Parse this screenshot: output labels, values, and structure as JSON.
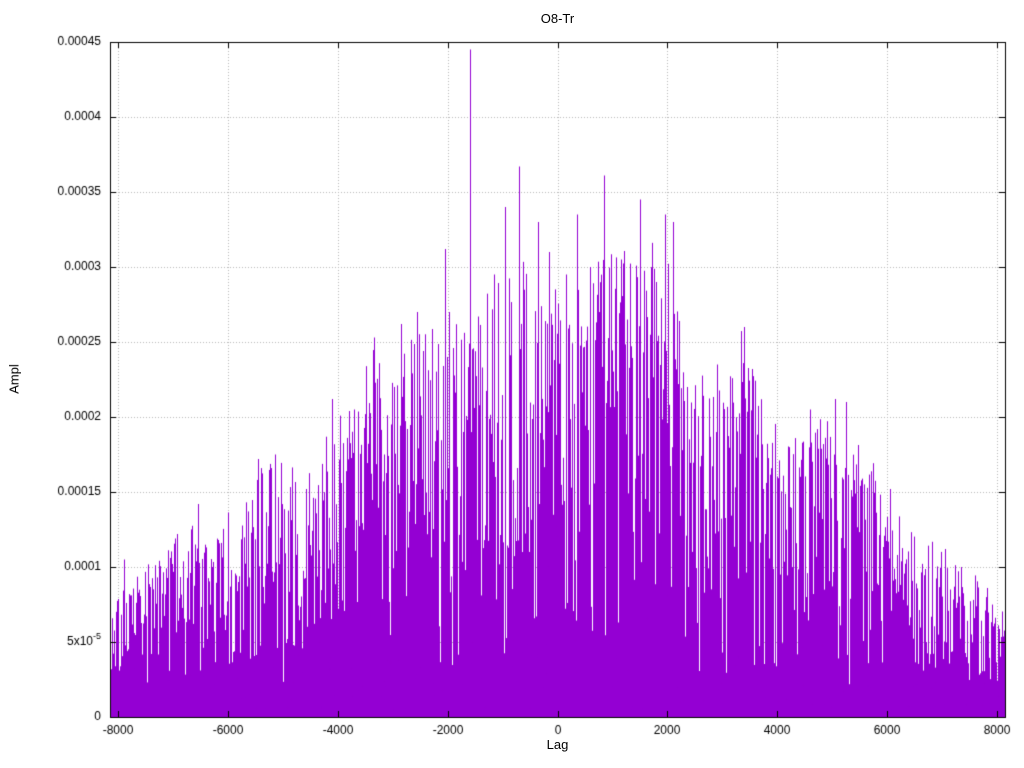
{
  "chart_data": {
    "type": "line",
    "style": "impulses",
    "title": "O8-Tr",
    "xlabel": "Lag",
    "ylabel": "Ampl",
    "xlim": [
      -8150,
      8150
    ],
    "ylim": [
      0,
      0.00045
    ],
    "grid": true,
    "legend": false,
    "line_color": "#9400d3",
    "grid_color": "#b8b8b8",
    "text_color": "#000000",
    "background": "#ffffff",
    "xticks": [
      {
        "v": -8000,
        "label": "-8000"
      },
      {
        "v": -6000,
        "label": "-6000"
      },
      {
        "v": -4000,
        "label": "-4000"
      },
      {
        "v": -2000,
        "label": "-2000"
      },
      {
        "v": 0,
        "label": "0"
      },
      {
        "v": 2000,
        "label": "2000"
      },
      {
        "v": 4000,
        "label": "4000"
      },
      {
        "v": 6000,
        "label": "6000"
      },
      {
        "v": 8000,
        "label": "8000"
      }
    ],
    "yticks": [
      {
        "v": 0,
        "label": "0"
      },
      {
        "v": 5e-05,
        "label": "5x10",
        "sup": "-5"
      },
      {
        "v": 0.0001,
        "label": "0.0001"
      },
      {
        "v": 0.00015,
        "label": "0.00015"
      },
      {
        "v": 0.0002,
        "label": "0.0002"
      },
      {
        "v": 0.00025,
        "label": "0.00025"
      },
      {
        "v": 0.0003,
        "label": "0.0003"
      },
      {
        "v": 0.00035,
        "label": "0.00035"
      },
      {
        "v": 0.0004,
        "label": "0.0004"
      },
      {
        "v": 0.00045,
        "label": "0.00045"
      }
    ],
    "envelope": [
      [
        -8150,
        6e-05
      ],
      [
        -8000,
        8e-05
      ],
      [
        -7800,
        9e-05
      ],
      [
        -7400,
        0.0001
      ],
      [
        -7000,
        0.00012
      ],
      [
        -6600,
        0.00013
      ],
      [
        -6200,
        0.00012
      ],
      [
        -5800,
        0.00014
      ],
      [
        -5400,
        0.00017
      ],
      [
        -5000,
        0.00017
      ],
      [
        -4600,
        0.00015
      ],
      [
        -4200,
        0.00019
      ],
      [
        -3800,
        0.00021
      ],
      [
        -3400,
        0.00024
      ],
      [
        -3000,
        0.00024
      ],
      [
        -2600,
        0.00026
      ],
      [
        -2200,
        0.00027
      ],
      [
        -1800,
        0.00028
      ],
      [
        -1400,
        0.00027
      ],
      [
        -1000,
        0.0003
      ],
      [
        -600,
        0.00031
      ],
      [
        -200,
        0.00029
      ],
      [
        200,
        0.00028
      ],
      [
        600,
        0.0003
      ],
      [
        1000,
        0.00031
      ],
      [
        1400,
        0.0003
      ],
      [
        1800,
        0.00031
      ],
      [
        2200,
        0.00028
      ],
      [
        2600,
        0.00022
      ],
      [
        3000,
        0.00022
      ],
      [
        3400,
        0.00025
      ],
      [
        3800,
        0.00021
      ],
      [
        4200,
        0.00019
      ],
      [
        4600,
        0.0002
      ],
      [
        5000,
        0.00021
      ],
      [
        5400,
        0.00018
      ],
      [
        5800,
        0.00016
      ],
      [
        6200,
        0.00013
      ],
      [
        6600,
        0.00012
      ],
      [
        7000,
        0.00011
      ],
      [
        7400,
        0.0001
      ],
      [
        7800,
        9e-05
      ],
      [
        8150,
        7e-05
      ]
    ],
    "peak": {
      "x": -1600,
      "y": 0.000445
    },
    "spikes": [
      [
        -7900,
        0.000105
      ],
      [
        -6550,
        0.000142
      ],
      [
        -5450,
        0.000172
      ],
      [
        -5150,
        0.000175
      ],
      [
        -4100,
        0.000212
      ],
      [
        -3700,
        0.000205
      ],
      [
        -3350,
        0.000253
      ],
      [
        -2850,
        0.000262
      ],
      [
        -2550,
        0.00027
      ],
      [
        -2050,
        0.000312
      ],
      [
        -1600,
        0.000445
      ],
      [
        -1150,
        0.000295
      ],
      [
        -950,
        0.00034
      ],
      [
        -700,
        0.000367
      ],
      [
        -350,
        0.00033
      ],
      [
        -150,
        0.00031
      ],
      [
        150,
        0.000295
      ],
      [
        350,
        0.000335
      ],
      [
        600,
        0.0003
      ],
      [
        850,
        0.000361
      ],
      [
        1150,
        0.000305
      ],
      [
        1500,
        0.000345
      ],
      [
        1800,
        0.00029
      ],
      [
        1950,
        0.000335
      ],
      [
        2100,
        0.00033
      ],
      [
        2900,
        0.000235
      ],
      [
        3400,
        0.00026
      ],
      [
        3550,
        0.000232
      ],
      [
        4600,
        0.000205
      ],
      [
        5050,
        0.000212
      ],
      [
        5250,
        0.00021
      ],
      [
        6050,
        0.000152
      ],
      [
        7050,
        0.000112
      ]
    ],
    "noise_floor": 4e-05,
    "seed": 1234
  }
}
